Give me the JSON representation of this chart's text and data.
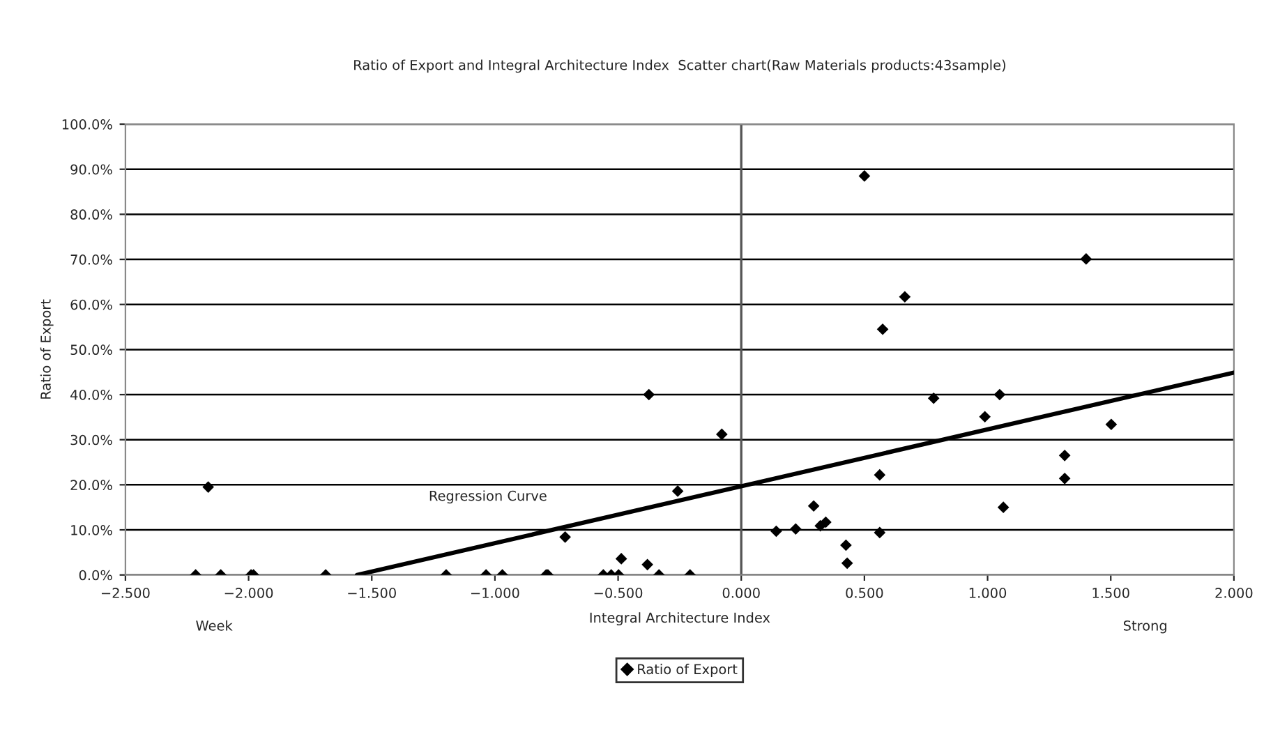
{
  "chart_data": {
    "type": "scatter",
    "title": "Ratio of Export and Integral Architecture Index  Scatter chart(Raw Materials products:43sample)",
    "xlabel": "Integral Architecture Index",
    "ylabel": "Ratio of Export",
    "annotations": [
      "Week",
      "Strong",
      "Regression Curve"
    ],
    "series": [
      {
        "name": "Ratio of Export",
        "color": "#000000",
        "marker": "diamond",
        "x": [
          -2.215,
          -2.164,
          -2.113,
          -1.99,
          -1.98,
          -1.687,
          -1.198,
          -1.036,
          -0.97,
          -0.792,
          -0.785,
          -0.715,
          -0.56,
          -0.528,
          -0.498,
          -0.487,
          -0.381,
          -0.375,
          -0.334,
          -0.258,
          -0.208,
          -0.079,
          0.142,
          0.221,
          0.294,
          0.321,
          0.343,
          0.425,
          0.43,
          0.5,
          0.562,
          0.562,
          0.574,
          0.664,
          0.781,
          0.989,
          1.049,
          1.064,
          1.313,
          1.313,
          1.4,
          1.502
        ],
        "values": [
          0,
          19.5,
          0,
          0,
          0,
          0,
          0,
          0,
          0,
          0,
          0,
          8.4,
          0,
          0,
          0,
          3.6,
          2.3,
          40.0,
          0,
          18.6,
          0,
          31.2,
          9.7,
          10.2,
          15.3,
          10.9,
          11.7,
          6.6,
          2.6,
          88.5,
          22.2,
          9.4,
          54.5,
          61.7,
          39.2,
          35.1,
          40.0,
          15.0,
          26.5,
          21.4,
          70.1,
          33.4
        ]
      },
      {
        "type": "line",
        "color": "#000000",
        "marker": "none",
        "line_style": "solid",
        "x": [
          -1.56,
          2.0
        ],
        "values": [
          0,
          44.9
        ]
      }
    ],
    "ref_lines": [
      {
        "axis": "x",
        "value": 0,
        "color": "#555555"
      }
    ],
    "xlim": [
      -2.5,
      2.0
    ],
    "xticks": [
      {
        "value": -2.5,
        "label": "−2.500"
      },
      {
        "value": -2.0,
        "label": "−2.000"
      },
      {
        "value": -1.5,
        "label": "−1.500"
      },
      {
        "value": -1.0,
        "label": "−1.000"
      },
      {
        "value": -0.5,
        "label": "−0.500"
      },
      {
        "value": 0,
        "label": "0.000"
      },
      {
        "value": 0.5,
        "label": "0.500"
      },
      {
        "value": 1.0,
        "label": "1.000"
      },
      {
        "value": 1.5,
        "label": "1.500"
      },
      {
        "value": 2.0,
        "label": "2.000"
      }
    ],
    "ylim": [
      0,
      100
    ],
    "yticks": [
      {
        "value": 0,
        "label": "0.0%"
      },
      {
        "value": 10,
        "label": "10.0%"
      },
      {
        "value": 20,
        "label": "20.0%"
      },
      {
        "value": 30,
        "label": "30.0%"
      },
      {
        "value": 40,
        "label": "40.0%"
      },
      {
        "value": 50,
        "label": "50.0%"
      },
      {
        "value": 60,
        "label": "60.0%"
      },
      {
        "value": 70,
        "label": "70.0%"
      },
      {
        "value": 80,
        "label": "80.0%"
      },
      {
        "value": 90,
        "label": "90.0%"
      },
      {
        "value": 100,
        "label": "100.0%"
      }
    ],
    "grid": "y",
    "legend": "bottom"
  }
}
